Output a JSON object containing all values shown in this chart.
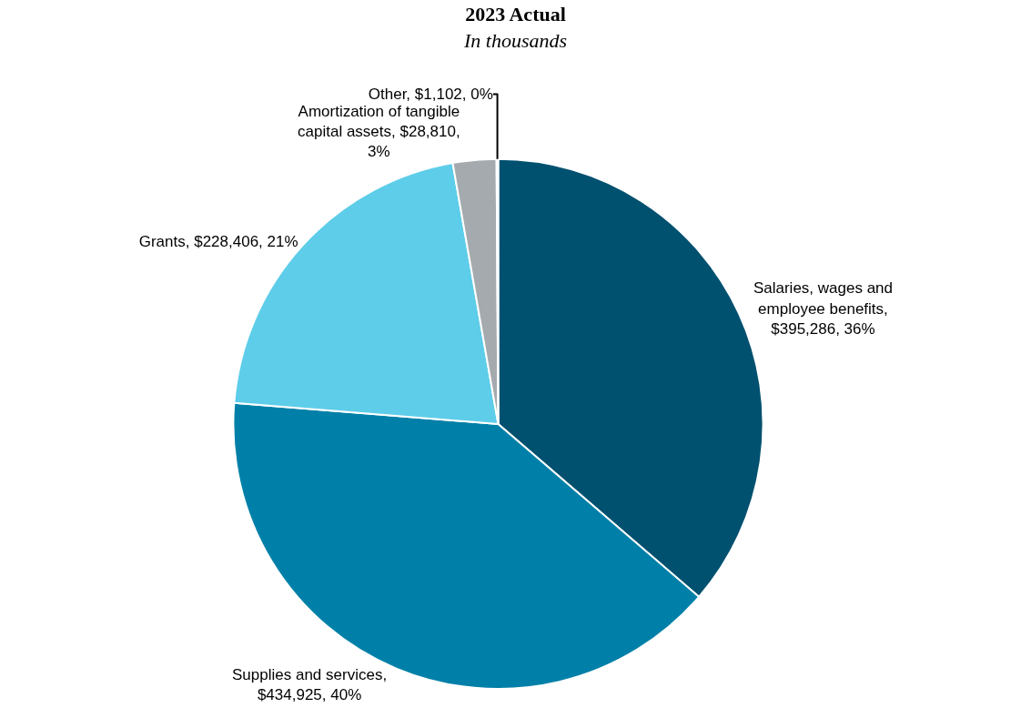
{
  "chart_data": {
    "type": "pie",
    "title": "2023 Actual",
    "subtitle": "In thousands",
    "categories": [
      "Salaries, wages and employee benefits, $395,286, 36%",
      "Supplies and services, $434,925, 40%",
      "Grants, $228,406, 21%",
      "Amortization of tangible capital assets, $28,810, 3%",
      "Other, $1,102, 0%"
    ],
    "values": [
      395286,
      434925,
      228406,
      28810,
      1102
    ],
    "colors": [
      "#00506f",
      "#0080a8",
      "#5ecde9",
      "#a5aaae",
      "#c8cbcd"
    ],
    "legend": false
  }
}
